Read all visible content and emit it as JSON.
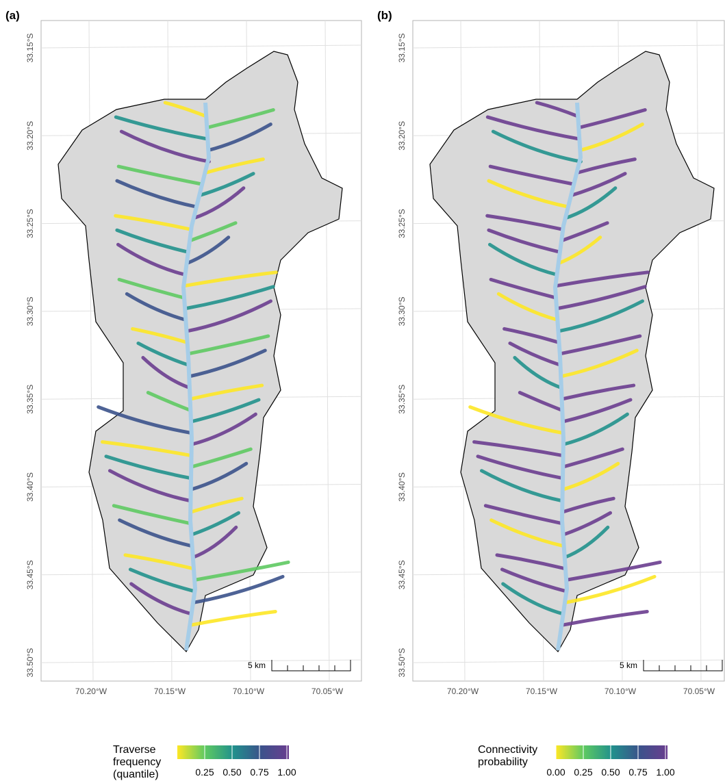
{
  "panels": [
    {
      "label": "(a)",
      "lat_ticks": [
        "33.15°S",
        "33.20°S",
        "33.25°S",
        "33.30°S",
        "33.35°S",
        "33.40°S",
        "33.45°S",
        "33.50°S"
      ],
      "lon_ticks": [
        "70.20°W",
        "70.15°W",
        "70.10°W",
        "70.05°W"
      ],
      "scale_bar": "5 km",
      "legend": {
        "title": [
          "Traverse",
          "frequency",
          "(quantile)"
        ],
        "ticks": [
          "0.25",
          "0.50",
          "0.75",
          "1.00"
        ]
      }
    },
    {
      "label": "(b)",
      "lat_ticks": [
        "33.15°S",
        "33.20°S",
        "33.25°S",
        "33.30°S",
        "33.35°S",
        "33.40°S",
        "33.45°S",
        "33.50°S"
      ],
      "lon_ticks": [
        "70.20°W",
        "70.15°W",
        "70.10°W",
        "70.05°W"
      ],
      "scale_bar": "5 km",
      "legend": {
        "title": [
          "Connectivity",
          "probability"
        ],
        "ticks": [
          "0.00",
          "0.25",
          "0.50",
          "0.75",
          "1.00"
        ]
      }
    }
  ]
}
